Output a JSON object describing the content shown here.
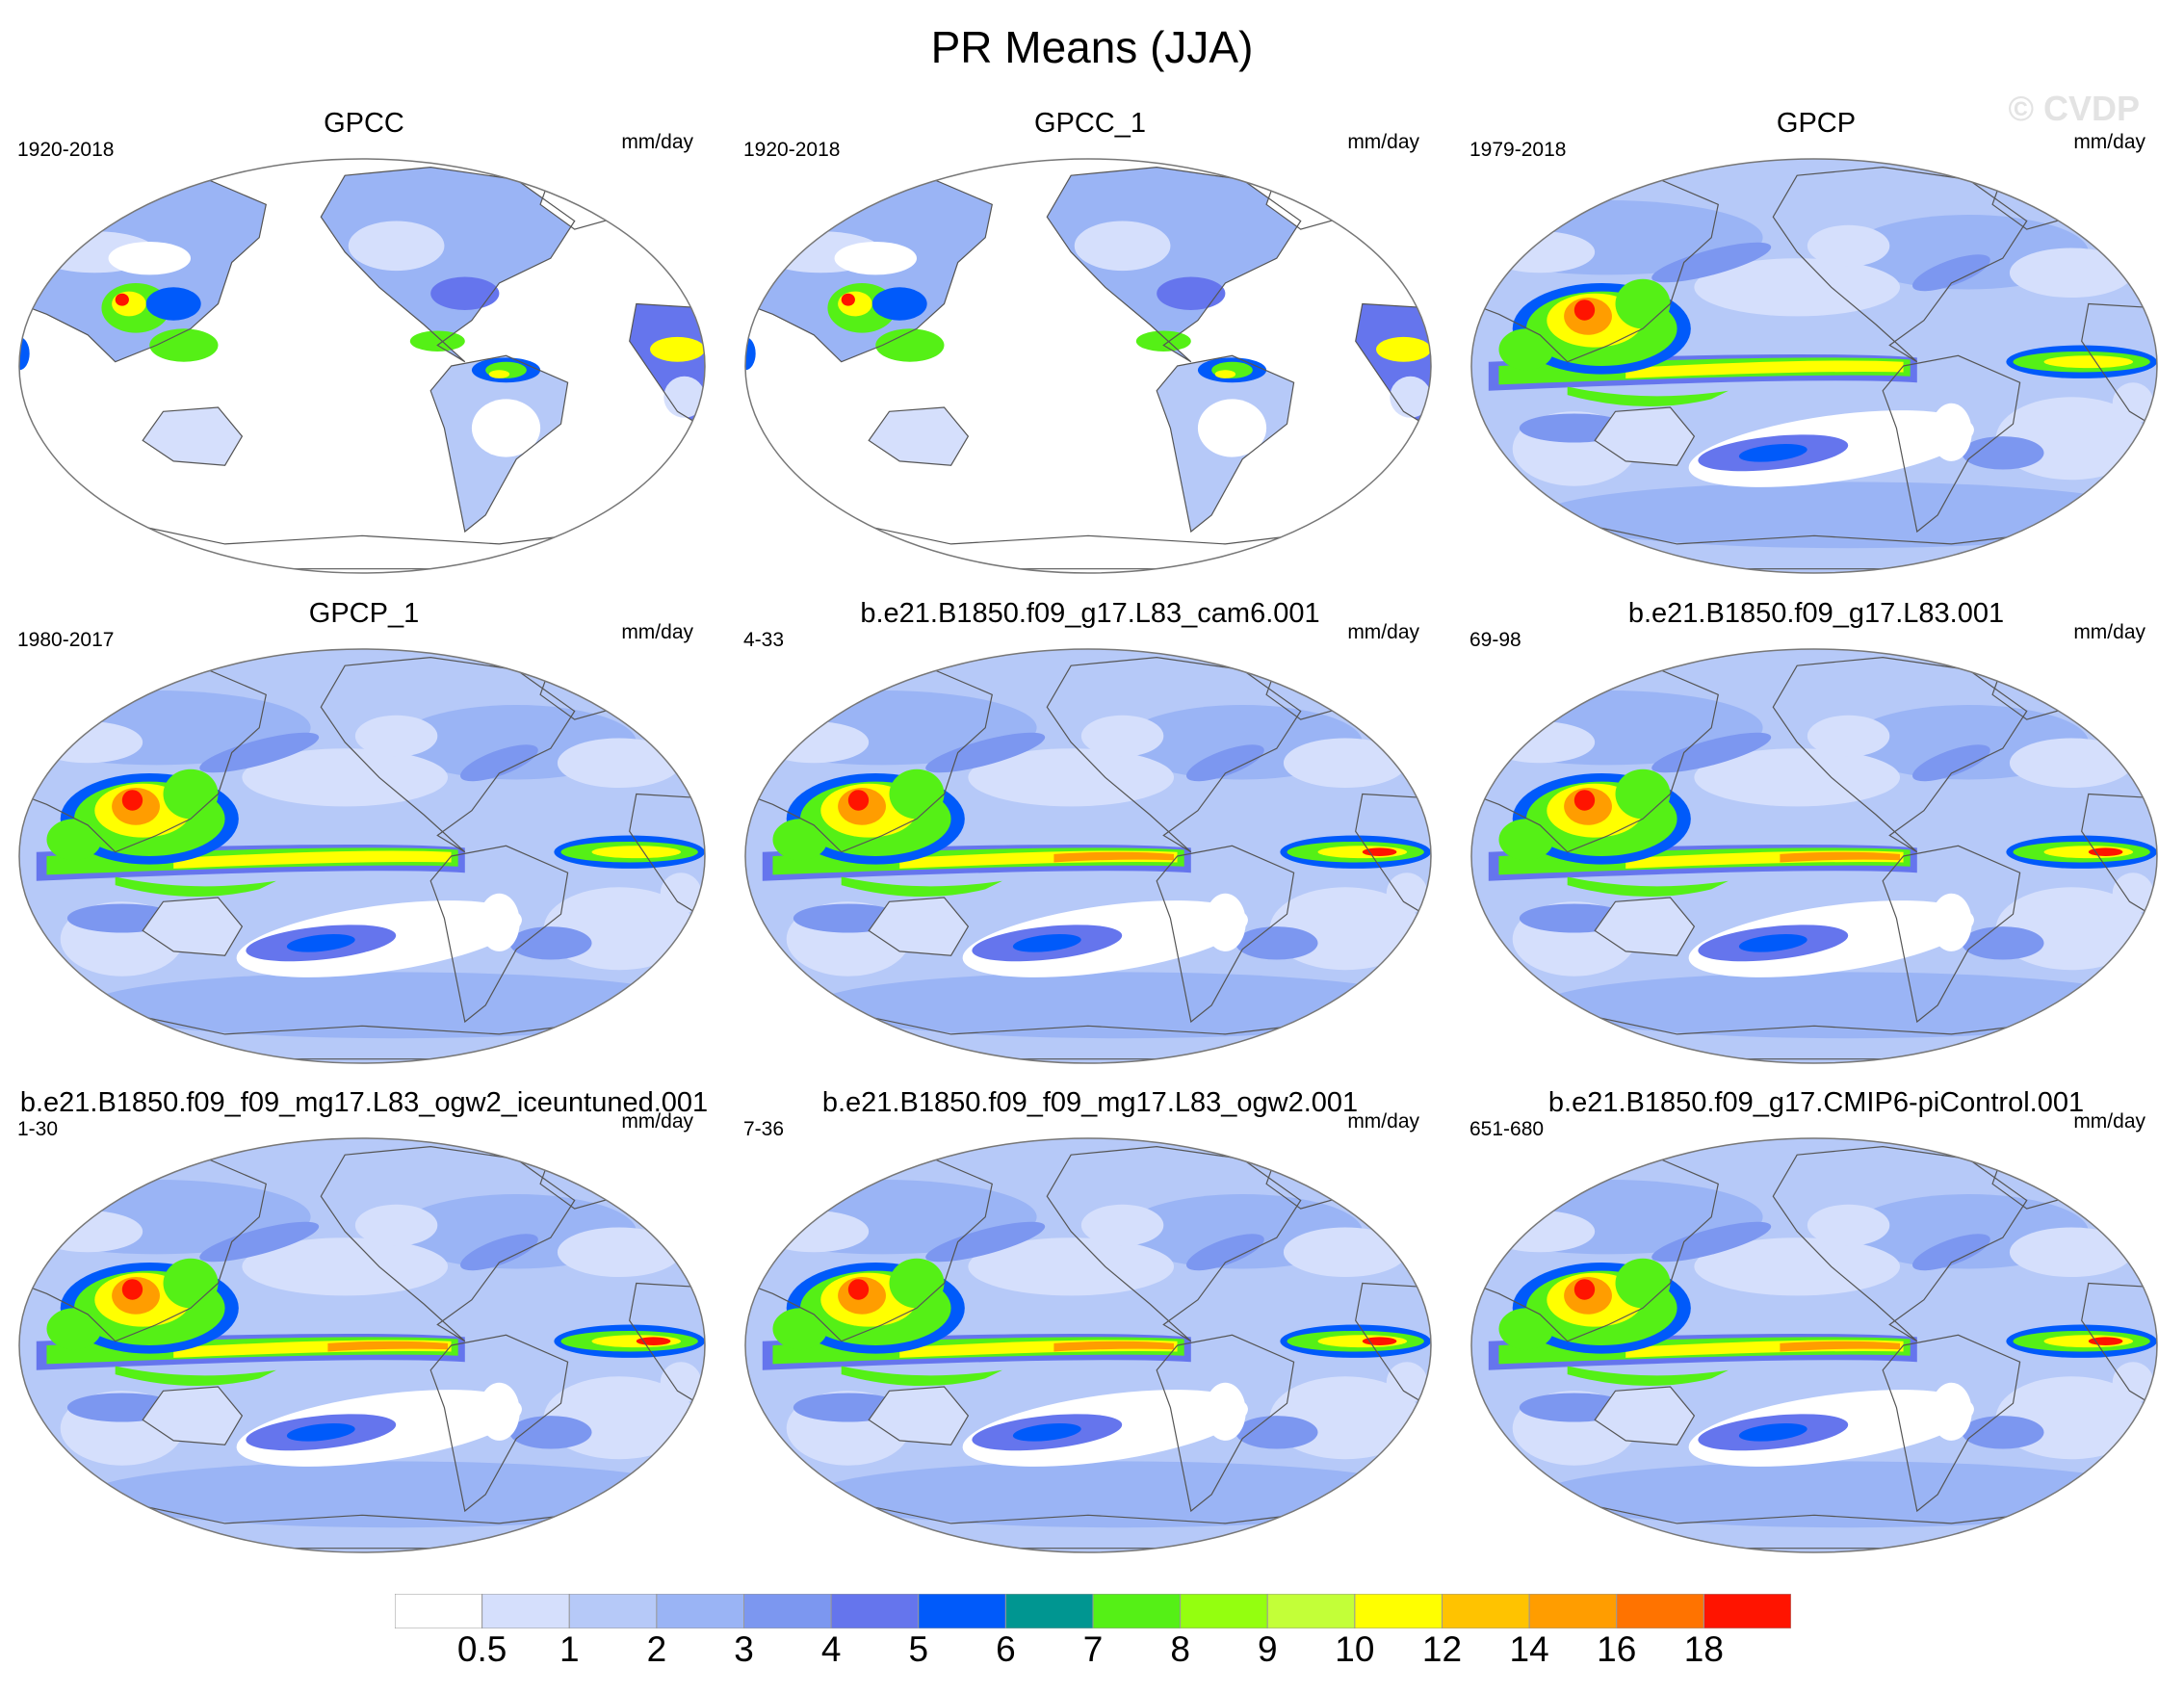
{
  "title": "PR Means (JJA)",
  "watermark": "© CVDP",
  "panels": [
    {
      "title": "GPCC",
      "years": "1920-2018",
      "units": "mm/day",
      "kind": "land"
    },
    {
      "title": "GPCC_1",
      "years": "1920-2018",
      "units": "mm/day",
      "kind": "land"
    },
    {
      "title": "GPCP",
      "years": "1979-2018",
      "units": "mm/day",
      "kind": "obs"
    },
    {
      "title": "GPCP_1",
      "years": "1980-2017",
      "units": "mm/day",
      "kind": "obs"
    },
    {
      "title": "b.e21.B1850.f09_g17.L83_cam6.001",
      "years": "4-33",
      "units": "mm/day",
      "kind": "model"
    },
    {
      "title": "b.e21.B1850.f09_g17.L83.001",
      "years": "69-98",
      "units": "mm/day",
      "kind": "model"
    },
    {
      "title": "b.e21.B1850.f09_f09_mg17.L83_ogw2_iceuntuned.001",
      "years": "1-30",
      "units": "mm/day",
      "kind": "model"
    },
    {
      "title": "b.e21.B1850.f09_f09_mg17.L83_ogw2.001",
      "years": "7-36",
      "units": "mm/day",
      "kind": "model"
    },
    {
      "title": "b.e21.B1850.f09_g17.CMIP6-piControl.001",
      "years": "651-680",
      "units": "mm/day",
      "kind": "model"
    }
  ],
  "colorbar": {
    "labels": [
      "0.5",
      "1",
      "2",
      "3",
      "4",
      "5",
      "6",
      "7",
      "8",
      "9",
      "10",
      "12",
      "14",
      "16",
      "18"
    ],
    "colors": [
      "#ffffff",
      "#d5dffc",
      "#b6c9f8",
      "#9ab4f5",
      "#7c97f0",
      "#6575ed",
      "#005afa",
      "#009691",
      "#55f016",
      "#94ff0f",
      "#c3ff38",
      "#ffff00",
      "#ffc300",
      "#ff9d00",
      "#ff7300",
      "#ff1400"
    ]
  }
}
